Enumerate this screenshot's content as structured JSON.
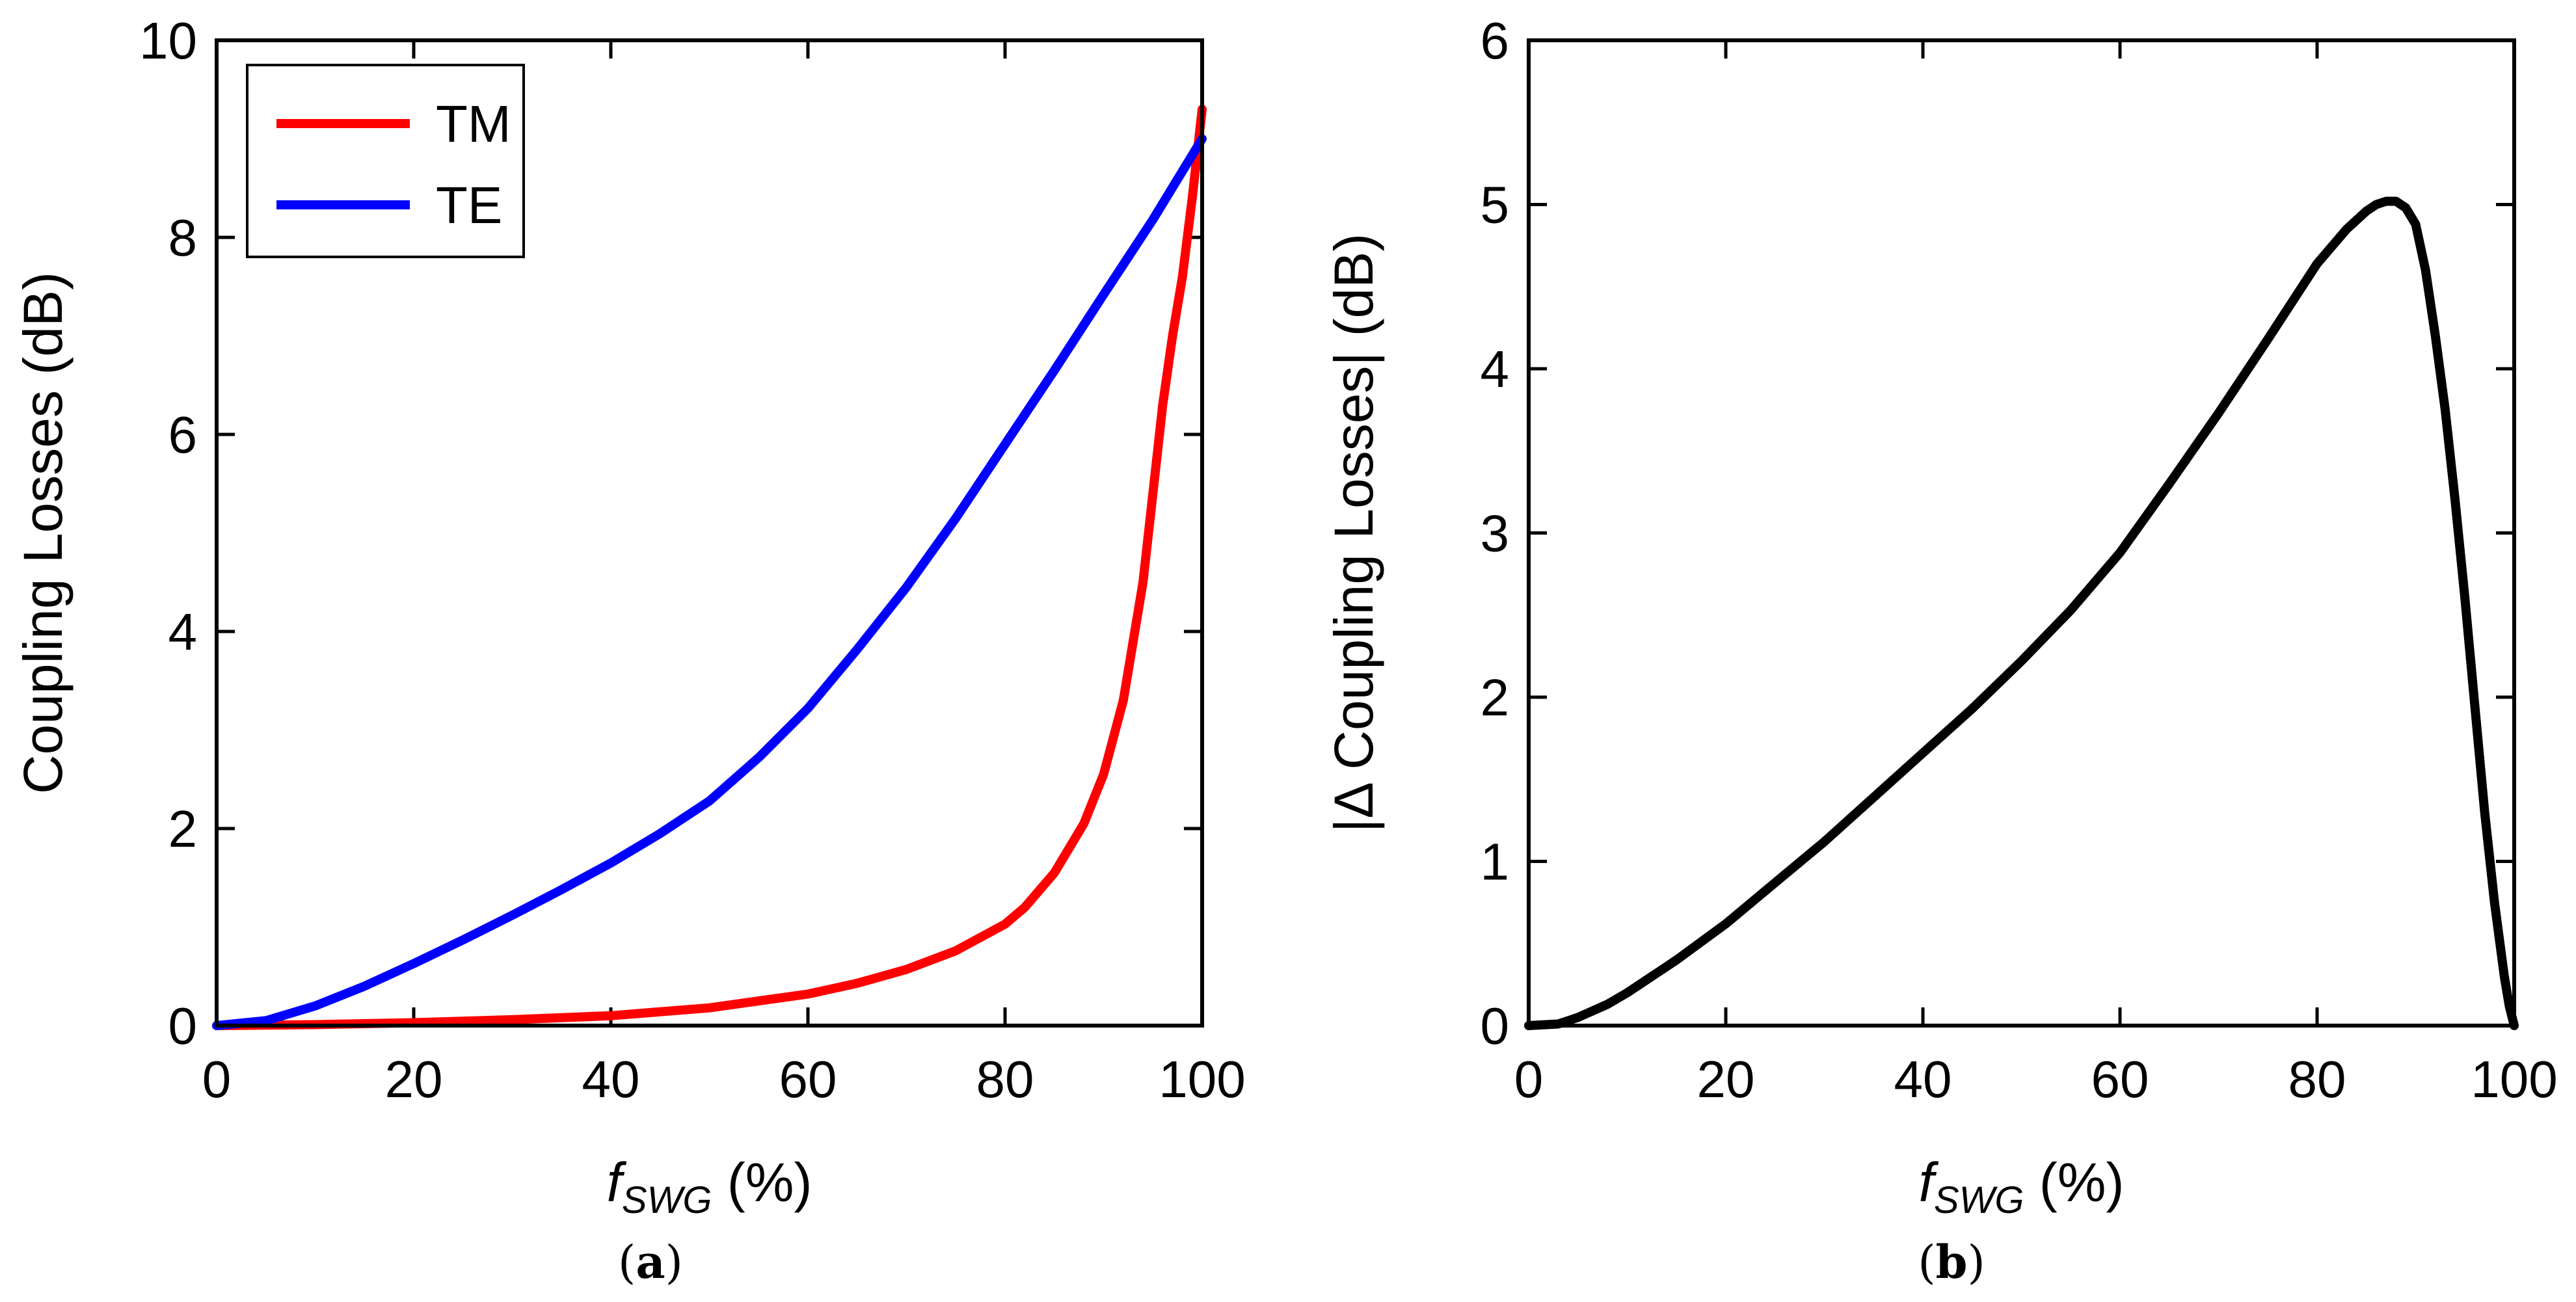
{
  "chart_data": [
    {
      "id": "a",
      "type": "line",
      "caption_letter": "a",
      "xlabel_main": "f",
      "xlabel_sub": "SWG",
      "xlabel_unit": " (%)",
      "ylabel": "Coupling Losses (dB)",
      "xlim": [
        0,
        100
      ],
      "ylim": [
        0,
        10
      ],
      "xticks": [
        0,
        20,
        40,
        60,
        80,
        100
      ],
      "yticks": [
        0,
        2,
        4,
        6,
        8,
        10
      ],
      "legend": {
        "placement": "top-left",
        "entries": [
          "TM",
          "TE"
        ]
      },
      "series": [
        {
          "name": "TM",
          "color": "#ff0000",
          "x": [
            0,
            10,
            20,
            30,
            40,
            50,
            55,
            60,
            65,
            70,
            75,
            80,
            82,
            85,
            88,
            90,
            92,
            94,
            95,
            96,
            97,
            98,
            99,
            100
          ],
          "y": [
            0,
            0.01,
            0.03,
            0.06,
            0.1,
            0.18,
            0.25,
            0.32,
            0.43,
            0.57,
            0.76,
            1.03,
            1.2,
            1.55,
            2.05,
            2.55,
            3.3,
            4.5,
            5.4,
            6.3,
            7.0,
            7.6,
            8.4,
            9.3
          ]
        },
        {
          "name": "TE",
          "color": "#0000ff",
          "x": [
            0,
            5,
            10,
            15,
            20,
            25,
            30,
            35,
            40,
            45,
            50,
            55,
            60,
            65,
            70,
            75,
            80,
            85,
            90,
            95,
            100
          ],
          "y": [
            0,
            0.05,
            0.2,
            0.4,
            0.63,
            0.87,
            1.12,
            1.38,
            1.65,
            1.95,
            2.28,
            2.72,
            3.22,
            3.82,
            4.45,
            5.15,
            5.9,
            6.65,
            7.42,
            8.18,
            9.0
          ]
        }
      ]
    },
    {
      "id": "b",
      "type": "line",
      "caption_letter": "b",
      "xlabel_main": "f",
      "xlabel_sub": "SWG",
      "xlabel_unit": " (%)",
      "ylabel": "|Δ Coupling Losses| (dB)",
      "xlim": [
        0,
        100
      ],
      "ylim": [
        0,
        6
      ],
      "xticks": [
        0,
        20,
        40,
        60,
        80,
        100
      ],
      "yticks": [
        0,
        1,
        2,
        3,
        4,
        5,
        6
      ],
      "series": [
        {
          "name": "|Δ Coupling Losses|",
          "color": "#000000",
          "x": [
            0,
            3,
            5,
            8,
            10,
            15,
            20,
            25,
            30,
            35,
            40,
            45,
            50,
            55,
            60,
            65,
            70,
            75,
            80,
            83,
            85,
            86,
            87,
            88,
            89,
            90,
            91,
            92,
            93,
            94,
            95,
            96,
            97,
            98,
            99,
            99.5,
            100
          ],
          "y": [
            0,
            0.01,
            0.05,
            0.13,
            0.2,
            0.4,
            0.62,
            0.87,
            1.12,
            1.39,
            1.66,
            1.93,
            2.22,
            2.53,
            2.88,
            3.3,
            3.73,
            4.18,
            4.64,
            4.85,
            4.96,
            5.0,
            5.02,
            5.02,
            4.98,
            4.88,
            4.6,
            4.2,
            3.75,
            3.2,
            2.6,
            1.95,
            1.3,
            0.75,
            0.3,
            0.12,
            0
          ]
        }
      ]
    }
  ]
}
